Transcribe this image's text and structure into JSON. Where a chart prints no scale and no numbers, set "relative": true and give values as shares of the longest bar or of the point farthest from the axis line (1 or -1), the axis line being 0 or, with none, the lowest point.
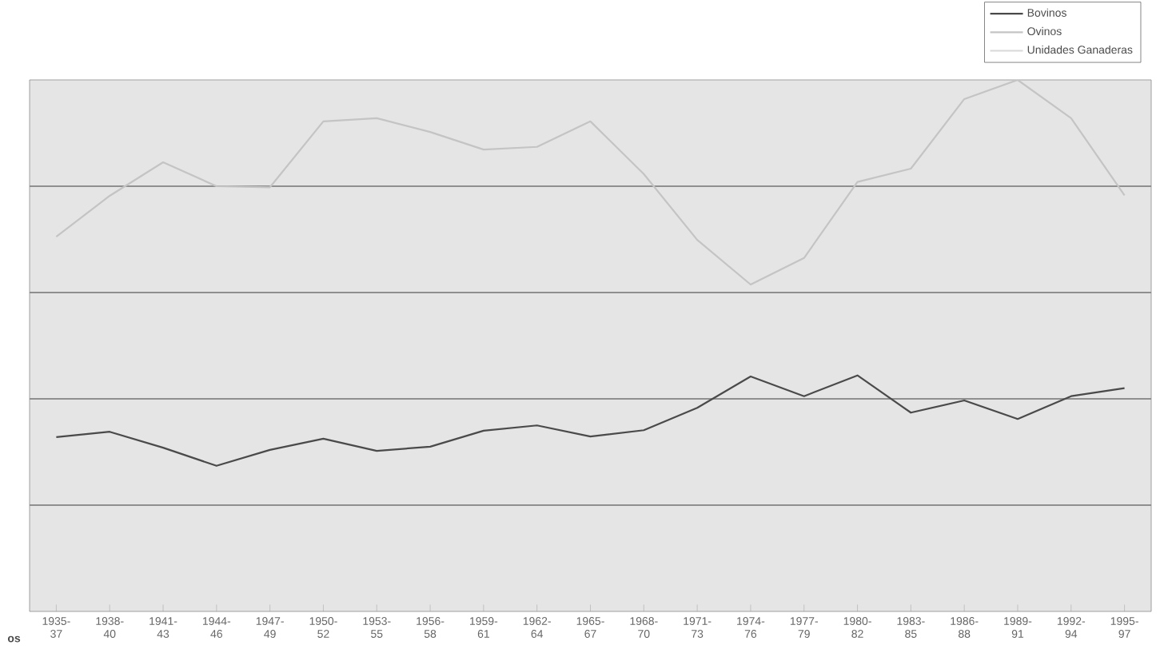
{
  "chart_data": {
    "type": "line",
    "relative": true,
    "xlabel": "os",
    "grid": "y",
    "legend": "top right",
    "categories": [
      "1935-37",
      "1938-40",
      "1941-43",
      "1944-46",
      "1947-49",
      "1950-52",
      "1953-55",
      "1956-58",
      "1959-61",
      "1962-64",
      "1965-67",
      "1968-70",
      "1971-73",
      "1974-76",
      "1977-79",
      "1980-82",
      "1983-85",
      "1986-88",
      "1989-91",
      "1992-94",
      "1995-97"
    ],
    "series": [
      {
        "name": "Bovinos",
        "color": "#4a4a4a",
        "values": [
          0.328,
          0.338,
          0.308,
          0.274,
          0.304,
          0.325,
          0.302,
          0.31,
          0.34,
          0.35,
          0.329,
          0.341,
          0.383,
          0.442,
          0.405,
          0.444,
          0.374,
          0.397,
          0.362,
          0.405,
          0.42
        ]
      },
      {
        "name": "Ovinos",
        "color": "#c4c4c4",
        "values": [
          0.705,
          0.782,
          0.845,
          0.8,
          0.798,
          0.922,
          0.928,
          0.902,
          0.869,
          0.874,
          0.922,
          0.823,
          0.699,
          0.615,
          0.665,
          0.808,
          0.833,
          0.964,
          1.0,
          0.928,
          0.783
        ]
      },
      {
        "name": "Unidades Ganaderas",
        "color": "#d8d8d8",
        "values": [
          null,
          null,
          null,
          null,
          null,
          null,
          null,
          null,
          null,
          null,
          null,
          null,
          null,
          null,
          null,
          null,
          null,
          null,
          null,
          null,
          null
        ]
      }
    ]
  }
}
